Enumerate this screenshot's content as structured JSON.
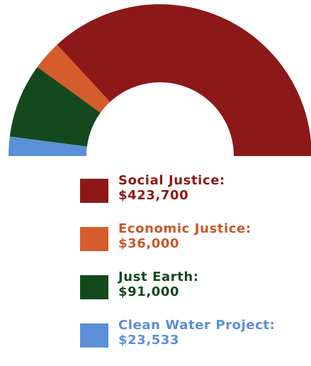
{
  "chart_data": {
    "type": "pie",
    "variant": "half-donut",
    "slices": [
      {
        "label": "Social Justice:",
        "value_text": "$423,700",
        "value": 423700,
        "color": "#8d1818",
        "text_color": "#8d1818"
      },
      {
        "label": "Economic Justice:",
        "value_text": "$36,000",
        "value": 36000,
        "color": "#d55c2c",
        "text_color": "#c8582a"
      },
      {
        "label": "Just Earth:",
        "value_text": "$91,000",
        "value": 91000,
        "color": "#14491e",
        "text_color": "#14491e"
      },
      {
        "label": "Clean Water Project:",
        "value_text": "$23,533",
        "value": 23533,
        "color": "#5b8fd6",
        "text_color": "#5b8fd6"
      }
    ],
    "title": "",
    "legend_position": "bottom"
  }
}
